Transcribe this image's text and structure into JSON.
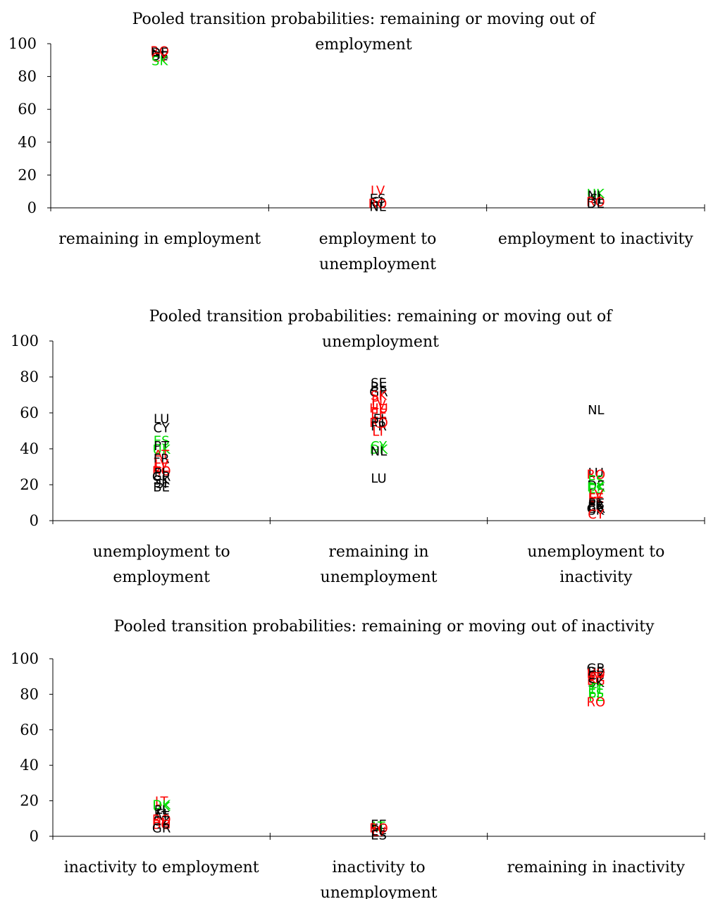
{
  "colors": {
    "black": "#000000",
    "red": "#ff0000",
    "green": "#00dd00"
  },
  "chart_data": [
    {
      "type": "scatter",
      "title": [
        "Pooled transition probabilities: remaining or moving out of",
        "employment"
      ],
      "ylim": [
        0,
        100
      ],
      "yticks": [
        0,
        20,
        40,
        60,
        80,
        100
      ],
      "categories": [
        [
          "remaining in employment"
        ],
        [
          "employment to",
          "unemployment"
        ],
        [
          "employment to inactivity"
        ]
      ],
      "points": [
        {
          "cat": 0,
          "label": "RO",
          "y": 96,
          "color": "red"
        },
        {
          "cat": 0,
          "label": "DE",
          "y": 95,
          "color": "black"
        },
        {
          "cat": 0,
          "label": "NL",
          "y": 94,
          "color": "black"
        },
        {
          "cat": 0,
          "label": "BE",
          "y": 93,
          "color": "black"
        },
        {
          "cat": 0,
          "label": "CY",
          "y": 92,
          "color": "red"
        },
        {
          "cat": 0,
          "label": "SK",
          "y": 90,
          "color": "green"
        },
        {
          "cat": 1,
          "label": "LV",
          "y": 11,
          "color": "red"
        },
        {
          "cat": 1,
          "label": "ES",
          "y": 6,
          "color": "black"
        },
        {
          "cat": 1,
          "label": "SI",
          "y": 4,
          "color": "black"
        },
        {
          "cat": 1,
          "label": "RO",
          "y": 3,
          "color": "red"
        },
        {
          "cat": 1,
          "label": "NL",
          "y": 1,
          "color": "black"
        },
        {
          "cat": 2,
          "label": "UK",
          "y": 9,
          "color": "green"
        },
        {
          "cat": 2,
          "label": "NL",
          "y": 8,
          "color": "black"
        },
        {
          "cat": 2,
          "label": "SI",
          "y": 6,
          "color": "black"
        },
        {
          "cat": 2,
          "label": "RO",
          "y": 4,
          "color": "red"
        },
        {
          "cat": 2,
          "label": "DE",
          "y": 3,
          "color": "black"
        }
      ]
    },
    {
      "type": "scatter",
      "title": [
        "Pooled transition probabilities: remaining or moving out of",
        "unemployment"
      ],
      "ylim": [
        0,
        100
      ],
      "yticks": [
        0,
        20,
        40,
        60,
        80,
        100
      ],
      "categories": [
        [
          "unemployment to",
          "employment"
        ],
        [
          "remaining in",
          "unemployment"
        ],
        [
          "unemployment to",
          "inactivity"
        ]
      ],
      "points": [
        {
          "cat": 0,
          "label": "LU",
          "y": 57,
          "color": "black"
        },
        {
          "cat": 0,
          "label": "CY",
          "y": 52,
          "color": "black"
        },
        {
          "cat": 0,
          "label": "ES",
          "y": 45,
          "color": "green"
        },
        {
          "cat": 0,
          "label": "PT",
          "y": 42,
          "color": "black"
        },
        {
          "cat": 0,
          "label": "UK",
          "y": 40,
          "color": "green"
        },
        {
          "cat": 0,
          "label": "AT",
          "y": 37,
          "color": "red"
        },
        {
          "cat": 0,
          "label": "FR",
          "y": 35,
          "color": "black"
        },
        {
          "cat": 0,
          "label": "LV",
          "y": 32,
          "color": "red"
        },
        {
          "cat": 0,
          "label": "EE",
          "y": 30,
          "color": "red"
        },
        {
          "cat": 0,
          "label": "RO",
          "y": 28,
          "color": "red"
        },
        {
          "cat": 0,
          "label": "PL",
          "y": 27,
          "color": "black"
        },
        {
          "cat": 0,
          "label": "GR",
          "y": 25,
          "color": "black"
        },
        {
          "cat": 0,
          "label": "SK",
          "y": 23,
          "color": "black"
        },
        {
          "cat": 0,
          "label": "SI",
          "y": 21,
          "color": "black"
        },
        {
          "cat": 0,
          "label": "BE",
          "y": 19,
          "color": "black"
        },
        {
          "cat": 1,
          "label": "SE",
          "y": 77,
          "color": "black"
        },
        {
          "cat": 1,
          "label": "BE",
          "y": 75,
          "color": "black"
        },
        {
          "cat": 1,
          "label": "GR",
          "y": 72,
          "color": "black"
        },
        {
          "cat": 1,
          "label": "SK",
          "y": 70,
          "color": "red"
        },
        {
          "cat": 1,
          "label": "PL",
          "y": 67,
          "color": "red"
        },
        {
          "cat": 1,
          "label": "LV",
          "y": 65,
          "color": "red"
        },
        {
          "cat": 1,
          "label": "HU",
          "y": 63,
          "color": "red"
        },
        {
          "cat": 1,
          "label": "EE",
          "y": 60,
          "color": "red"
        },
        {
          "cat": 1,
          "label": "FI",
          "y": 57,
          "color": "black"
        },
        {
          "cat": 1,
          "label": "PT",
          "y": 55,
          "color": "black"
        },
        {
          "cat": 1,
          "label": "RO",
          "y": 55,
          "color": "red"
        },
        {
          "cat": 1,
          "label": "FR",
          "y": 53,
          "color": "black"
        },
        {
          "cat": 1,
          "label": "LT",
          "y": 50,
          "color": "red"
        },
        {
          "cat": 1,
          "label": "CY",
          "y": 42,
          "color": "green"
        },
        {
          "cat": 1,
          "label": "DK",
          "y": 40,
          "color": "green"
        },
        {
          "cat": 1,
          "label": "NL",
          "y": 39,
          "color": "black"
        },
        {
          "cat": 1,
          "label": "LU",
          "y": 24,
          "color": "black"
        },
        {
          "cat": 2,
          "label": "NL",
          "y": 62,
          "color": "black"
        },
        {
          "cat": 2,
          "label": "LU",
          "y": 27,
          "color": "black"
        },
        {
          "cat": 2,
          "label": "RO",
          "y": 26,
          "color": "red"
        },
        {
          "cat": 2,
          "label": "ES",
          "y": 23,
          "color": "green"
        },
        {
          "cat": 2,
          "label": "DE",
          "y": 20,
          "color": "black"
        },
        {
          "cat": 2,
          "label": "DK",
          "y": 19,
          "color": "green"
        },
        {
          "cat": 2,
          "label": "ES",
          "y": 18,
          "color": "green"
        },
        {
          "cat": 2,
          "label": "LV",
          "y": 15,
          "color": "red"
        },
        {
          "cat": 2,
          "label": "EE",
          "y": 13,
          "color": "red"
        },
        {
          "cat": 2,
          "label": "IT",
          "y": 11,
          "color": "red"
        },
        {
          "cat": 2,
          "label": "PT",
          "y": 10,
          "color": "black"
        },
        {
          "cat": 2,
          "label": "FR",
          "y": 9,
          "color": "black"
        },
        {
          "cat": 2,
          "label": "BE",
          "y": 8,
          "color": "black"
        },
        {
          "cat": 2,
          "label": "GR",
          "y": 7,
          "color": "black"
        },
        {
          "cat": 2,
          "label": "SK",
          "y": 6,
          "color": "black"
        },
        {
          "cat": 2,
          "label": "CY",
          "y": 4,
          "color": "red"
        }
      ]
    },
    {
      "type": "scatter",
      "title": [
        "Pooled transition probabilities: remaining or moving out of inactivity"
      ],
      "ylim": [
        0,
        100
      ],
      "yticks": [
        0,
        20,
        40,
        60,
        80,
        100
      ],
      "categories": [
        [
          "inactivity to employment"
        ],
        [
          "inactivity to",
          "unemployment"
        ],
        [
          "remaining in inactivity"
        ]
      ],
      "points": [
        {
          "cat": 0,
          "label": "LT",
          "y": 20,
          "color": "red"
        },
        {
          "cat": 0,
          "label": "DK",
          "y": 18,
          "color": "green"
        },
        {
          "cat": 0,
          "label": "UK",
          "y": 17,
          "color": "green"
        },
        {
          "cat": 0,
          "label": "PL",
          "y": 15,
          "color": "black"
        },
        {
          "cat": 0,
          "label": "FI",
          "y": 13,
          "color": "black"
        },
        {
          "cat": 0,
          "label": "AT",
          "y": 12,
          "color": "black"
        },
        {
          "cat": 0,
          "label": "RO",
          "y": 10,
          "color": "red"
        },
        {
          "cat": 0,
          "label": "CZ",
          "y": 9,
          "color": "black"
        },
        {
          "cat": 0,
          "label": "HU",
          "y": 8,
          "color": "red"
        },
        {
          "cat": 0,
          "label": "BG",
          "y": 7,
          "color": "red"
        },
        {
          "cat": 0,
          "label": "GR",
          "y": 5,
          "color": "black"
        },
        {
          "cat": 1,
          "label": "EE",
          "y": 7,
          "color": "black"
        },
        {
          "cat": 1,
          "label": "LT",
          "y": 6,
          "color": "green"
        },
        {
          "cat": 1,
          "label": "RO",
          "y": 5,
          "color": "red"
        },
        {
          "cat": 1,
          "label": "PL",
          "y": 4,
          "color": "black"
        },
        {
          "cat": 1,
          "label": "LV",
          "y": 3,
          "color": "red"
        },
        {
          "cat": 1,
          "label": "ES",
          "y": 1,
          "color": "black"
        },
        {
          "cat": 2,
          "label": "GR",
          "y": 95,
          "color": "black"
        },
        {
          "cat": 2,
          "label": "BE",
          "y": 93,
          "color": "black"
        },
        {
          "cat": 2,
          "label": "HU",
          "y": 92,
          "color": "red"
        },
        {
          "cat": 2,
          "label": "CY",
          "y": 91,
          "color": "black"
        },
        {
          "cat": 2,
          "label": "IT",
          "y": 90,
          "color": "red"
        },
        {
          "cat": 2,
          "label": "LV",
          "y": 89,
          "color": "red"
        },
        {
          "cat": 2,
          "label": "BG",
          "y": 88,
          "color": "red"
        },
        {
          "cat": 2,
          "label": "SK",
          "y": 87,
          "color": "black"
        },
        {
          "cat": 2,
          "label": "FI",
          "y": 84,
          "color": "green"
        },
        {
          "cat": 2,
          "label": "EE",
          "y": 83,
          "color": "green"
        },
        {
          "cat": 2,
          "label": "ES",
          "y": 81,
          "color": "green"
        },
        {
          "cat": 2,
          "label": "PL",
          "y": 79,
          "color": "green"
        },
        {
          "cat": 2,
          "label": "RO",
          "y": 76,
          "color": "red"
        }
      ]
    }
  ]
}
